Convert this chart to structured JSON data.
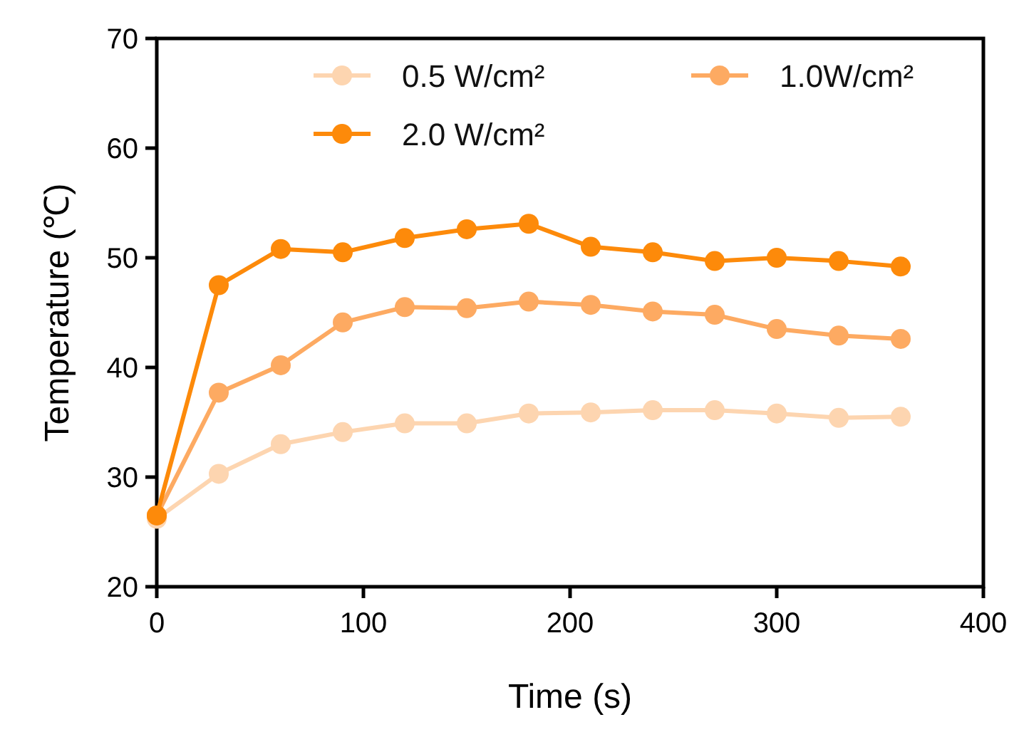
{
  "chart_data": {
    "type": "line",
    "xlabel": "Time (s)",
    "ylabel": "Temperature (℃)",
    "x": [
      0,
      30,
      60,
      90,
      120,
      150,
      180,
      210,
      240,
      270,
      300,
      330,
      360
    ],
    "series": [
      {
        "name": "0.5 W/cm²",
        "color": "#fdd5b0",
        "values": [
          26.2,
          30.3,
          33.0,
          34.1,
          34.9,
          34.9,
          35.8,
          35.9,
          36.1,
          36.1,
          35.8,
          35.4,
          35.5
        ]
      },
      {
        "name": "1.0W/cm²",
        "color": "#fdaa62",
        "values": [
          26.5,
          37.7,
          40.2,
          44.1,
          45.5,
          45.4,
          46.0,
          45.7,
          45.1,
          44.8,
          43.5,
          42.9,
          42.6
        ]
      },
      {
        "name": "2.0 W/cm²",
        "color": "#fd8a0a",
        "values": [
          26.5,
          47.5,
          50.8,
          50.5,
          51.8,
          52.6,
          53.1,
          51.0,
          50.5,
          49.7,
          50.0,
          49.7,
          49.2
        ]
      }
    ],
    "xlim": [
      0,
      400
    ],
    "xticks": [
      0,
      100,
      200,
      300,
      400
    ],
    "ylim": [
      20,
      70
    ],
    "yticks": [
      20,
      30,
      40,
      50,
      60,
      70
    ],
    "grid": false,
    "legend": "top",
    "marker": "circle",
    "line_style": "solid"
  }
}
